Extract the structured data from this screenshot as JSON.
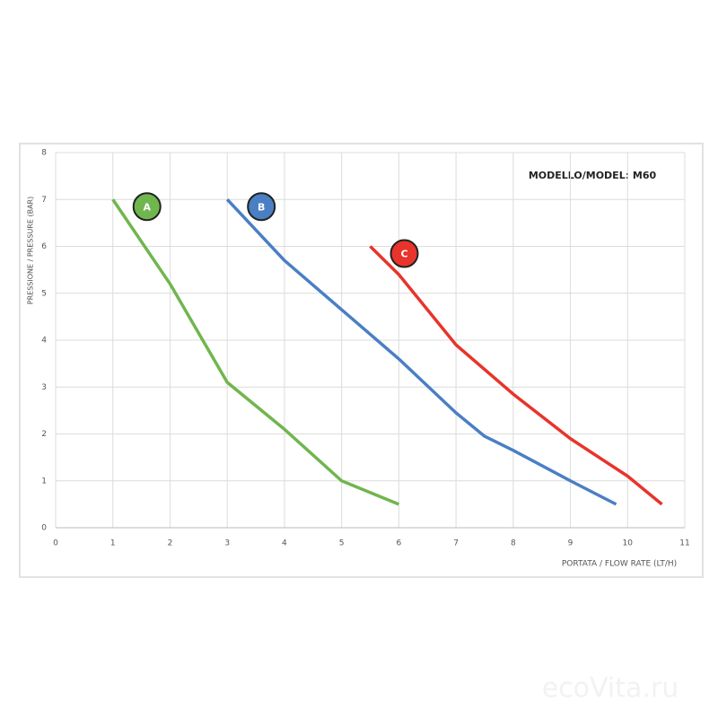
{
  "chart_data": {
    "type": "line",
    "title": "MODELLO/MODEL: M60",
    "x_label": "PORTATA / FLOW RATE (LT/H)",
    "y_label": "PRESSIONE / PRESSURE (BAR)",
    "watermark": "ecoVita.ru",
    "series": [
      {
        "name": "A",
        "color": "#70b64e",
        "x": [
          1,
          2,
          3,
          4,
          5,
          6
        ],
        "values": [
          7,
          5.2,
          3.1,
          2.1,
          1.0,
          0.5
        ]
      },
      {
        "name": "B",
        "color": "#4a7fc4",
        "x": [
          3,
          4,
          5,
          6,
          7,
          7.5,
          8,
          9,
          9.8
        ],
        "values": [
          7,
          5.7,
          4.65,
          3.6,
          2.45,
          1.95,
          1.65,
          1.0,
          0.5
        ]
      },
      {
        "name": "C",
        "color": "#e8342a",
        "x": [
          5.5,
          6,
          7,
          8,
          9,
          10,
          10.6
        ],
        "values": [
          6,
          5.4,
          3.9,
          2.85,
          1.9,
          1.1,
          0.5
        ]
      }
    ],
    "xlim": [
      0,
      11
    ],
    "xticks": [
      0,
      1,
      2,
      3,
      4,
      5,
      6,
      7,
      8,
      9,
      10,
      11
    ],
    "ylim": [
      0,
      8
    ],
    "yticks": [
      0,
      1,
      2,
      3,
      4,
      5,
      6,
      7,
      8
    ],
    "grid": true
  }
}
